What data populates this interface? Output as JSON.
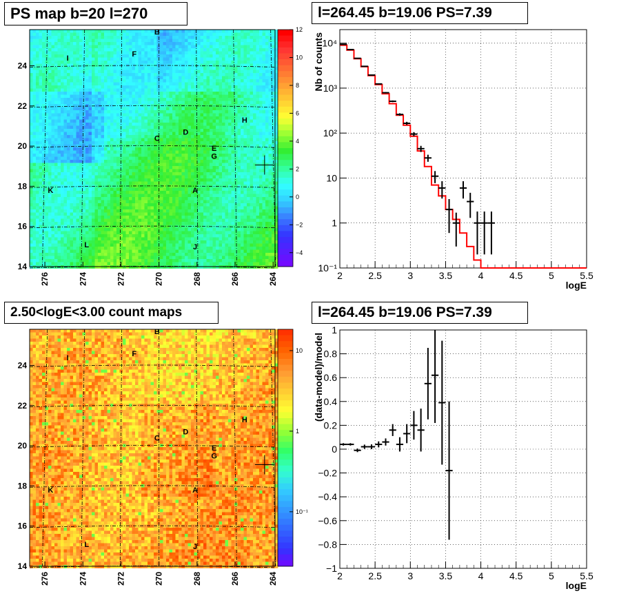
{
  "panels": {
    "ps_map": {
      "title": "PS map b=20 l=270",
      "x_ticks": [
        "276",
        "274",
        "272",
        "270",
        "268",
        "266",
        "264"
      ],
      "y_ticks": [
        "14",
        "16",
        "18",
        "20",
        "22",
        "24"
      ],
      "colorbar_ticks": [
        "12",
        "10",
        "8",
        "6",
        "4",
        "2",
        "0",
        "−2",
        "−4"
      ],
      "colorbar_range": [
        -5,
        12
      ]
    },
    "count_map": {
      "title": "2.50<logE<3.00 count maps",
      "x_ticks": [
        "276",
        "274",
        "272",
        "270",
        "268",
        "266",
        "264"
      ],
      "y_ticks": [
        "14",
        "16",
        "18",
        "20",
        "22",
        "24"
      ],
      "colorbar_ticks": [
        "10",
        "1",
        "10⁻¹"
      ]
    },
    "spectrum": {
      "title": "l=264.45 b=19.06 PS=7.39",
      "xlabel": "logE",
      "ylabel": "Nb of counts"
    },
    "residual": {
      "title": "l=264.45 b=19.06 PS=7.39",
      "xlabel": "logE",
      "ylabel": "(data-model)/model"
    }
  },
  "map_labels": [
    {
      "text": "B",
      "l": 270.1,
      "b": 25.7
    },
    {
      "text": "I",
      "l": 274.8,
      "b": 24.4
    },
    {
      "text": "F",
      "l": 271.3,
      "b": 24.6
    },
    {
      "text": "H",
      "l": 265.5,
      "b": 21.3
    },
    {
      "text": "D",
      "l": 268.6,
      "b": 20.7
    },
    {
      "text": "C",
      "l": 270.1,
      "b": 20.4
    },
    {
      "text": "E",
      "l": 267.1,
      "b": 19.9
    },
    {
      "text": "G",
      "l": 267.1,
      "b": 19.5
    },
    {
      "text": "K",
      "l": 275.7,
      "b": 17.8
    },
    {
      "text": "A",
      "l": 268.1,
      "b": 17.8
    },
    {
      "text": "L",
      "l": 273.8,
      "b": 15.1
    },
    {
      "text": "J",
      "l": 268.1,
      "b": 15.0
    }
  ],
  "source_marker": {
    "l": 264.45,
    "b": 19.06
  },
  "chart_data": [
    {
      "type": "heatmap",
      "title": "PS map b=20 l=270",
      "xlabel": "",
      "ylabel": "",
      "xlim": [
        276.8,
        263.9
      ],
      "ylim": [
        14,
        25.8
      ],
      "z_range": [
        -5,
        12
      ],
      "color_scale": [
        "#7f00ff",
        "#5a1cff",
        "#3333ff",
        "#3a78ff",
        "#33ccff",
        "#33ffff",
        "#33ff99",
        "#33ee33",
        "#99ff33",
        "#ffff33",
        "#ffcc33",
        "#ff9933",
        "#ff6633",
        "#ff3333",
        "#ff0000"
      ]
    },
    {
      "type": "heatmap",
      "title": "2.50<logE<3.00 count maps",
      "xlabel": "",
      "ylabel": "",
      "xlim": [
        276.8,
        263.9
      ],
      "ylim": [
        14,
        25.8
      ],
      "z_scale": "log"
    },
    {
      "type": "line",
      "title": "l=264.45 b=19.06 PS=7.39",
      "xlabel": "logE",
      "ylabel": "Nb of counts",
      "xlim": [
        2,
        5.5
      ],
      "ylim": [
        0.1,
        20000
      ],
      "y_scale": "log",
      "grid": true,
      "x_ticks": [
        "2",
        "2.5",
        "3",
        "3.5",
        "4",
        "4.5",
        "5",
        "5.5"
      ],
      "y_ticks": [
        "10⁻¹",
        "1",
        "10",
        "10²",
        "10³",
        "10⁴"
      ],
      "series": [
        {
          "style": "histogram",
          "color": "#ff0000",
          "edges": [
            2.0,
            2.1,
            2.2,
            2.3,
            2.4,
            2.5,
            2.6,
            2.7,
            2.8,
            2.9,
            3.0,
            3.1,
            3.2,
            3.3,
            3.4,
            3.5,
            3.6,
            3.7,
            3.8,
            3.9,
            4.0,
            5.5
          ],
          "values": [
            9000,
            7000,
            4500,
            3000,
            1900,
            1200,
            750,
            450,
            250,
            150,
            85,
            40,
            18,
            7,
            4,
            2,
            1.2,
            0.6,
            0.3,
            0.15,
            0.1
          ]
        },
        {
          "style": "errorbar",
          "color": "#000000",
          "x": [
            2.05,
            2.15,
            2.25,
            2.35,
            2.45,
            2.55,
            2.65,
            2.75,
            2.85,
            2.95,
            3.05,
            3.15,
            3.25,
            3.35,
            3.45,
            3.55,
            3.65,
            3.75,
            3.85,
            3.95,
            4.05,
            4.15
          ],
          "y": [
            9400,
            7200,
            4600,
            3050,
            1950,
            1240,
            790,
            510,
            260,
            165,
            95,
            45,
            28,
            11,
            6,
            2,
            1,
            6,
            3,
            1,
            1,
            1
          ],
          "err": [
            97,
            85,
            68,
            55,
            44,
            35,
            28,
            22,
            16,
            13,
            10,
            7,
            5,
            3.3,
            2.5,
            1.4,
            0.7,
            2.5,
            1.7,
            0.8,
            0.8,
            0.8
          ]
        }
      ]
    },
    {
      "type": "scatter",
      "title": "l=264.45 b=19.06 PS=7.39",
      "xlabel": "logE",
      "ylabel": "(data-model)/model",
      "xlim": [
        2,
        5.5
      ],
      "ylim": [
        -1,
        1
      ],
      "grid": true,
      "x_ticks": [
        "2",
        "2.5",
        "3",
        "3.5",
        "4",
        "4.5",
        "5",
        "5.5"
      ],
      "y_ticks": [
        "−1",
        "−0.8",
        "−0.6",
        "−0.4",
        "−0.2",
        "0",
        "0.2",
        "0.4",
        "0.6",
        "0.8",
        "1"
      ],
      "series": [
        {
          "style": "errorbar",
          "color": "#000000",
          "x": [
            2.05,
            2.15,
            2.25,
            2.35,
            2.45,
            2.55,
            2.65,
            2.75,
            2.85,
            2.95,
            3.05,
            3.15,
            3.25,
            3.35,
            3.45,
            3.55
          ],
          "y": [
            0.04,
            0.04,
            -0.01,
            0.02,
            0.02,
            0.04,
            0.06,
            0.16,
            0.04,
            0.13,
            0.2,
            0.16,
            0.55,
            0.62,
            0.39,
            -0.18
          ],
          "err": [
            0.01,
            0.01,
            0.015,
            0.018,
            0.02,
            0.025,
            0.03,
            0.05,
            0.06,
            0.08,
            0.12,
            0.18,
            0.3,
            0.4,
            0.52,
            0.58
          ]
        }
      ]
    }
  ]
}
